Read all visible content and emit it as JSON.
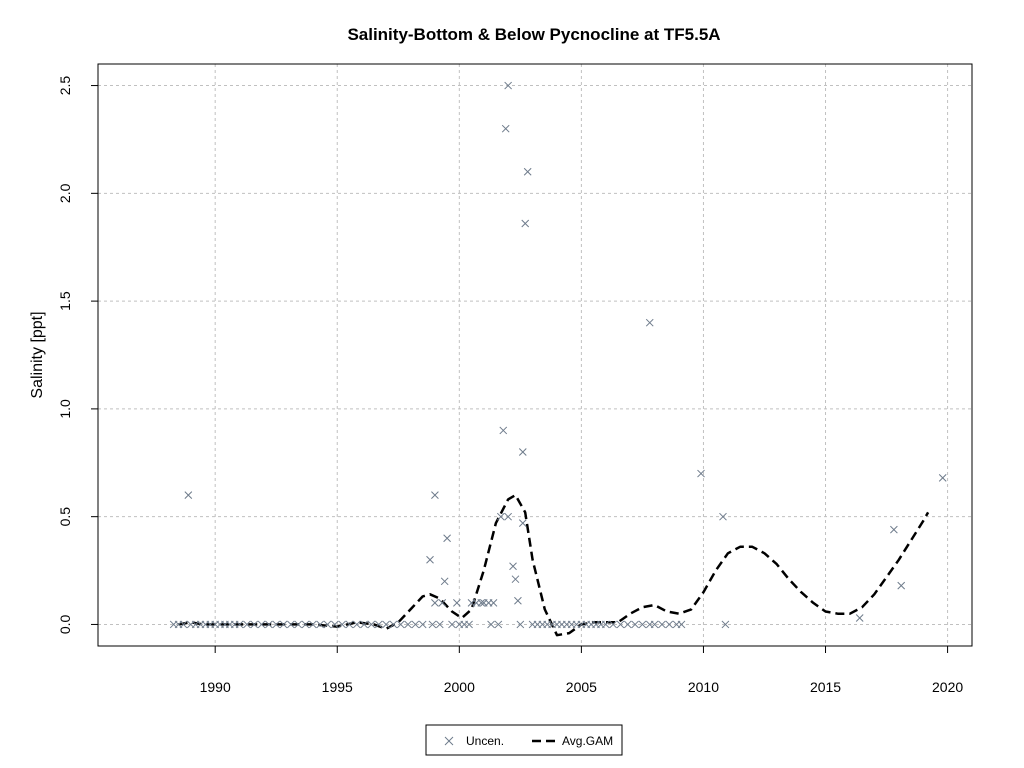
{
  "chart_data": {
    "type": "scatter",
    "title": "Salinity-Bottom & Below Pycnocline at TF5.5A",
    "xlabel": "",
    "ylabel": "Salinity [ppt]",
    "xlim": [
      1985.2,
      2021
    ],
    "ylim": [
      -0.1,
      2.6
    ],
    "x_ticks": [
      1990,
      1995,
      2000,
      2005,
      2010,
      2015,
      2020
    ],
    "y_ticks": [
      0.0,
      0.5,
      1.0,
      1.5,
      2.0,
      2.5
    ],
    "y_tick_labels": [
      "0.0",
      "0.5",
      "1.0",
      "1.5",
      "2.0",
      "2.5"
    ],
    "grid": true,
    "legend_position": "bottom-center",
    "colors": {
      "points": "#6e7b8b",
      "gam": "#000000",
      "grid": "#c0c0c0"
    },
    "series": [
      {
        "name": "Uncen.",
        "style": "x-marker",
        "points": [
          [
            1988.9,
            0.6
          ],
          [
            1999.0,
            0.6
          ],
          [
            1998.8,
            0.3
          ],
          [
            1999.5,
            0.4
          ],
          [
            1999.4,
            0.2
          ],
          [
            1999.0,
            0.1
          ],
          [
            1999.3,
            0.1
          ],
          [
            1999.9,
            0.1
          ],
          [
            2000.5,
            0.1
          ],
          [
            2000.7,
            0.1
          ],
          [
            2000.9,
            0.1
          ],
          [
            2001.0,
            0.1
          ],
          [
            2001.2,
            0.1
          ],
          [
            2001.4,
            0.1
          ],
          [
            2001.8,
            0.9
          ],
          [
            2001.9,
            2.3
          ],
          [
            2002.0,
            2.5
          ],
          [
            2002.0,
            0.5
          ],
          [
            2002.2,
            0.27
          ],
          [
            2002.3,
            0.21
          ],
          [
            2002.4,
            0.11
          ],
          [
            2001.7,
            0.5
          ],
          [
            2002.6,
            0.8
          ],
          [
            2002.6,
            0.47
          ],
          [
            2002.8,
            2.1
          ],
          [
            2002.7,
            1.86
          ],
          [
            2007.8,
            1.4
          ],
          [
            2009.9,
            0.7
          ],
          [
            2010.8,
            0.5
          ],
          [
            2010.9,
            0.0
          ],
          [
            2016.4,
            0.03
          ],
          [
            2017.8,
            0.44
          ],
          [
            2018.1,
            0.18
          ],
          [
            2019.8,
            0.68
          ],
          [
            1988.3,
            0.0
          ],
          [
            1988.5,
            0.0
          ],
          [
            1988.7,
            0.0
          ],
          [
            1989.0,
            0.0
          ],
          [
            1989.2,
            0.0
          ],
          [
            1989.4,
            0.0
          ],
          [
            1989.6,
            0.0
          ],
          [
            1989.8,
            0.0
          ],
          [
            1990.0,
            0.0
          ],
          [
            1990.2,
            0.0
          ],
          [
            1990.4,
            0.0
          ],
          [
            1990.6,
            0.0
          ],
          [
            1990.8,
            0.0
          ],
          [
            1991.0,
            0.0
          ],
          [
            1991.3,
            0.0
          ],
          [
            1991.6,
            0.0
          ],
          [
            1991.9,
            0.0
          ],
          [
            1992.2,
            0.0
          ],
          [
            1992.5,
            0.0
          ],
          [
            1992.8,
            0.0
          ],
          [
            1993.1,
            0.0
          ],
          [
            1993.4,
            0.0
          ],
          [
            1993.7,
            0.0
          ],
          [
            1994.0,
            0.0
          ],
          [
            1994.3,
            0.0
          ],
          [
            1994.6,
            0.0
          ],
          [
            1994.9,
            0.0
          ],
          [
            1995.2,
            0.0
          ],
          [
            1995.5,
            0.0
          ],
          [
            1995.8,
            0.0
          ],
          [
            1996.1,
            0.0
          ],
          [
            1996.4,
            0.0
          ],
          [
            1996.7,
            0.0
          ],
          [
            1997.0,
            0.0
          ],
          [
            1997.3,
            0.0
          ],
          [
            1997.6,
            0.0
          ],
          [
            1997.9,
            0.0
          ],
          [
            1998.2,
            0.0
          ],
          [
            1998.5,
            0.0
          ],
          [
            1998.9,
            0.0
          ],
          [
            1999.2,
            0.0
          ],
          [
            1999.7,
            0.0
          ],
          [
            2000.0,
            0.0
          ],
          [
            2000.2,
            0.0
          ],
          [
            2000.4,
            0.0
          ],
          [
            2001.3,
            0.0
          ],
          [
            2001.6,
            0.0
          ],
          [
            2002.5,
            0.0
          ],
          [
            2003.0,
            0.0
          ],
          [
            2003.2,
            0.0
          ],
          [
            2003.4,
            0.0
          ],
          [
            2003.6,
            0.0
          ],
          [
            2003.8,
            0.0
          ],
          [
            2004.0,
            0.0
          ],
          [
            2004.2,
            0.0
          ],
          [
            2004.4,
            0.0
          ],
          [
            2004.6,
            0.0
          ],
          [
            2004.8,
            0.0
          ],
          [
            2005.0,
            0.0
          ],
          [
            2005.2,
            0.0
          ],
          [
            2005.4,
            0.0
          ],
          [
            2005.6,
            0.0
          ],
          [
            2005.8,
            0.0
          ],
          [
            2006.0,
            0.0
          ],
          [
            2006.3,
            0.0
          ],
          [
            2006.6,
            0.0
          ],
          [
            2006.9,
            0.0
          ],
          [
            2007.2,
            0.0
          ],
          [
            2007.5,
            0.0
          ],
          [
            2007.8,
            0.0
          ],
          [
            2008.0,
            0.0
          ],
          [
            2008.3,
            0.0
          ],
          [
            2008.6,
            0.0
          ],
          [
            2008.9,
            0.0
          ],
          [
            2009.1,
            0.0
          ]
        ]
      },
      {
        "name": "Avg.GAM",
        "style": "dashed-line",
        "points": [
          [
            1988.5,
            0.0
          ],
          [
            1989.0,
            0.01
          ],
          [
            1989.5,
            0.0
          ],
          [
            1990.0,
            0.0
          ],
          [
            1991.0,
            0.0
          ],
          [
            1992.0,
            0.0
          ],
          [
            1993.0,
            0.0
          ],
          [
            1994.0,
            0.0
          ],
          [
            1995.0,
            -0.01
          ],
          [
            1995.8,
            0.01
          ],
          [
            1996.5,
            0.0
          ],
          [
            1997.0,
            -0.02
          ],
          [
            1997.5,
            0.01
          ],
          [
            1998.0,
            0.07
          ],
          [
            1998.5,
            0.13
          ],
          [
            1998.8,
            0.14
          ],
          [
            1999.2,
            0.12
          ],
          [
            1999.7,
            0.06
          ],
          [
            2000.1,
            0.03
          ],
          [
            2000.5,
            0.07
          ],
          [
            2001.0,
            0.25
          ],
          [
            2001.5,
            0.47
          ],
          [
            2002.0,
            0.58
          ],
          [
            2002.3,
            0.6
          ],
          [
            2002.7,
            0.52
          ],
          [
            2003.0,
            0.3
          ],
          [
            2003.5,
            0.07
          ],
          [
            2004.0,
            -0.05
          ],
          [
            2004.5,
            -0.04
          ],
          [
            2005.0,
            0.0
          ],
          [
            2005.5,
            0.01
          ],
          [
            2006.0,
            0.01
          ],
          [
            2006.5,
            0.01
          ],
          [
            2007.0,
            0.05
          ],
          [
            2007.5,
            0.08
          ],
          [
            2008.0,
            0.09
          ],
          [
            2008.5,
            0.06
          ],
          [
            2009.0,
            0.05
          ],
          [
            2009.5,
            0.07
          ],
          [
            2010.0,
            0.15
          ],
          [
            2010.5,
            0.25
          ],
          [
            2011.0,
            0.33
          ],
          [
            2011.5,
            0.36
          ],
          [
            2012.0,
            0.36
          ],
          [
            2012.5,
            0.33
          ],
          [
            2013.0,
            0.28
          ],
          [
            2013.5,
            0.21
          ],
          [
            2014.0,
            0.15
          ],
          [
            2014.5,
            0.1
          ],
          [
            2015.0,
            0.06
          ],
          [
            2015.5,
            0.05
          ],
          [
            2016.0,
            0.05
          ],
          [
            2016.5,
            0.08
          ],
          [
            2017.0,
            0.14
          ],
          [
            2017.5,
            0.22
          ],
          [
            2018.0,
            0.3
          ],
          [
            2018.5,
            0.39
          ],
          [
            2019.0,
            0.48
          ],
          [
            2019.2,
            0.52
          ]
        ]
      }
    ]
  }
}
